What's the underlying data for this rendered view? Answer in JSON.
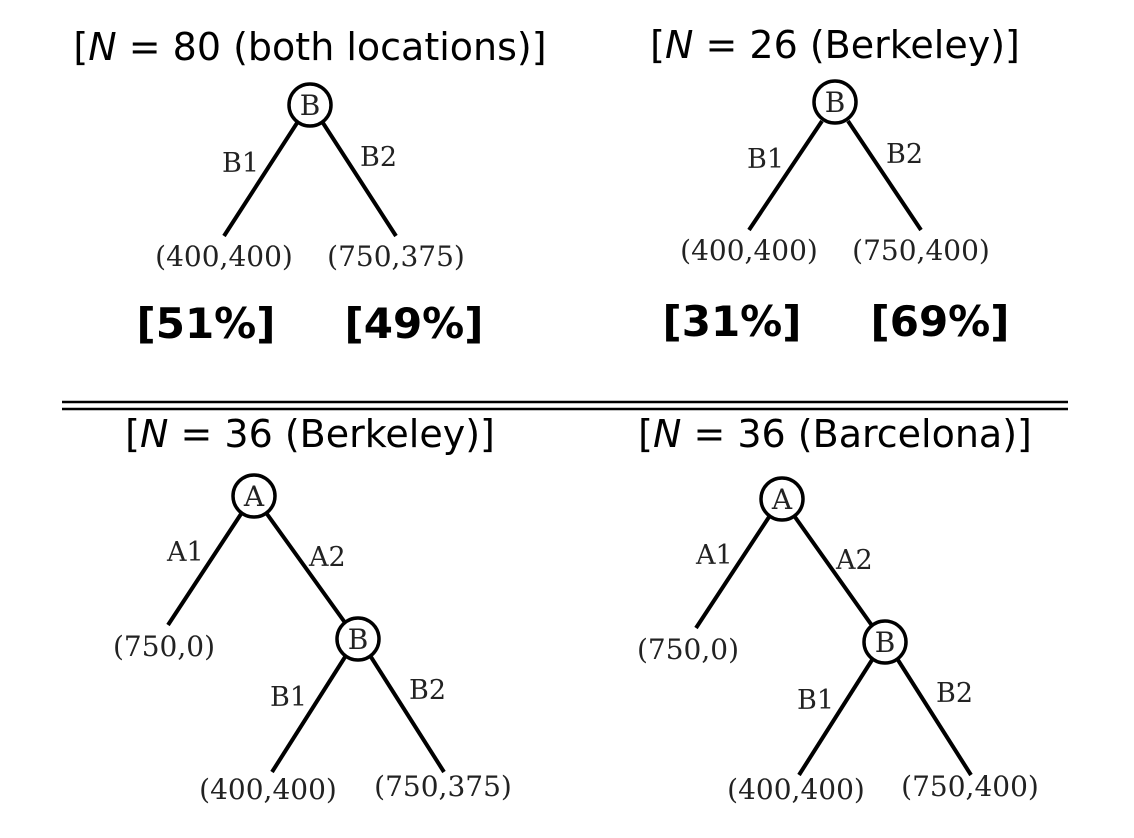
{
  "panels": {
    "p1": {
      "title_open": "[",
      "title_var": "N",
      "title_rest": " = 80 (both locations)]",
      "root": "B",
      "edge_left": "B1",
      "edge_right": "B2",
      "payoff_left": "(400,400)",
      "payoff_right": "(750,375)",
      "pct_left": "[51%]",
      "pct_right": "[49%]"
    },
    "p2": {
      "title_open": "[",
      "title_var": "N",
      "title_rest": " = 26 (Berkeley)]",
      "root": "B",
      "edge_left": "B1",
      "edge_right": "B2",
      "payoff_left": "(400,400)",
      "payoff_right": "(750,400)",
      "pct_left": "[31%]",
      "pct_right": "[69%]"
    },
    "p3": {
      "title_open": "[",
      "title_var": "N",
      "title_rest": " = 36 (Berkeley)]",
      "root": "A",
      "edge_a1": "A1",
      "edge_a2": "A2",
      "payoff_a1": "(750,0)",
      "child": "B",
      "edge_b1": "B1",
      "edge_b2": "B2",
      "payoff_b1": "(400,400)",
      "payoff_b2": "(750,375)"
    },
    "p4": {
      "title_open": "[",
      "title_var": "N",
      "title_rest": " = 36 (Barcelona)]",
      "root": "A",
      "edge_a1": "A1",
      "edge_a2": "A2",
      "payoff_a1": "(750,0)",
      "child": "B",
      "edge_b1": "B1",
      "edge_b2": "B2",
      "payoff_b1": "(400,400)",
      "payoff_b2": "(750,400)"
    }
  }
}
